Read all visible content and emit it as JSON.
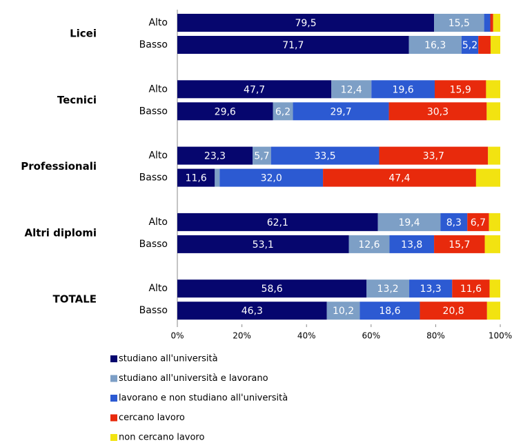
{
  "chart_data": {
    "type": "stacked-bar-horizontal",
    "groups": [
      "Licei",
      "Tecnici",
      "Professionali",
      "Altri diplomi",
      "TOTALE"
    ],
    "categories": [
      "Alto",
      "Basso",
      "Alto",
      "Basso",
      "Alto",
      "Basso",
      "Alto",
      "Basso",
      "Alto",
      "Basso"
    ],
    "series": [
      {
        "name": "studiano all'università",
        "color": "#06066e",
        "values": [
          79.5,
          71.7,
          47.7,
          29.6,
          23.3,
          11.6,
          62.1,
          53.1,
          58.6,
          46.3
        ],
        "value_labels": [
          "79,5",
          "71,7",
          "47,7",
          "29,6",
          "23,3",
          "11,6",
          "62,1",
          "53,1",
          "58,6",
          "46,3"
        ]
      },
      {
        "name": "studiano all'università e lavorano",
        "color": "#7d9fc6",
        "values": [
          15.5,
          16.3,
          12.4,
          6.2,
          5.7,
          1.5,
          19.4,
          12.6,
          13.2,
          10.2
        ],
        "value_labels": [
          "15,5",
          "16,3",
          "12,4",
          "6,2",
          "5,7",
          null,
          "19,4",
          "12,6",
          "13,2",
          "10,2"
        ]
      },
      {
        "name": "lavorano e non studiano all'università",
        "color": "#2c5ad2",
        "values": [
          1.9,
          5.2,
          19.6,
          29.7,
          33.5,
          32.0,
          8.3,
          13.8,
          13.3,
          18.6
        ],
        "value_labels": [
          null,
          "5,2",
          "19,6",
          "29,7",
          "33,5",
          "32,0",
          "8,3",
          "13,8",
          "13,3",
          "18,6"
        ]
      },
      {
        "name": "cercano lavoro",
        "color": "#e82a0c",
        "values": [
          0.9,
          3.8,
          15.9,
          30.3,
          33.7,
          47.4,
          6.7,
          15.7,
          11.6,
          20.8
        ],
        "value_labels": [
          null,
          null,
          "15,9",
          "30,3",
          "33,7",
          "47,4",
          "6,7",
          "15,7",
          "11,6",
          "20,8"
        ]
      },
      {
        "name": "non  cercano lavoro",
        "color": "#f2e311",
        "values": [
          2.2,
          3.0,
          4.4,
          4.2,
          3.8,
          7.5,
          3.5,
          4.8,
          3.3,
          4.1
        ],
        "value_labels": [
          null,
          null,
          null,
          null,
          null,
          null,
          null,
          null,
          null,
          null
        ]
      }
    ],
    "xlim": [
      0,
      100
    ],
    "xticks": [
      {
        "value": 0,
        "label": "0%"
      },
      {
        "value": 20,
        "label": "20%"
      },
      {
        "value": 40,
        "label": "40%"
      },
      {
        "value": 60,
        "label": "60%"
      },
      {
        "value": 80,
        "label": "80%"
      },
      {
        "value": 100,
        "label": "100%"
      }
    ]
  }
}
